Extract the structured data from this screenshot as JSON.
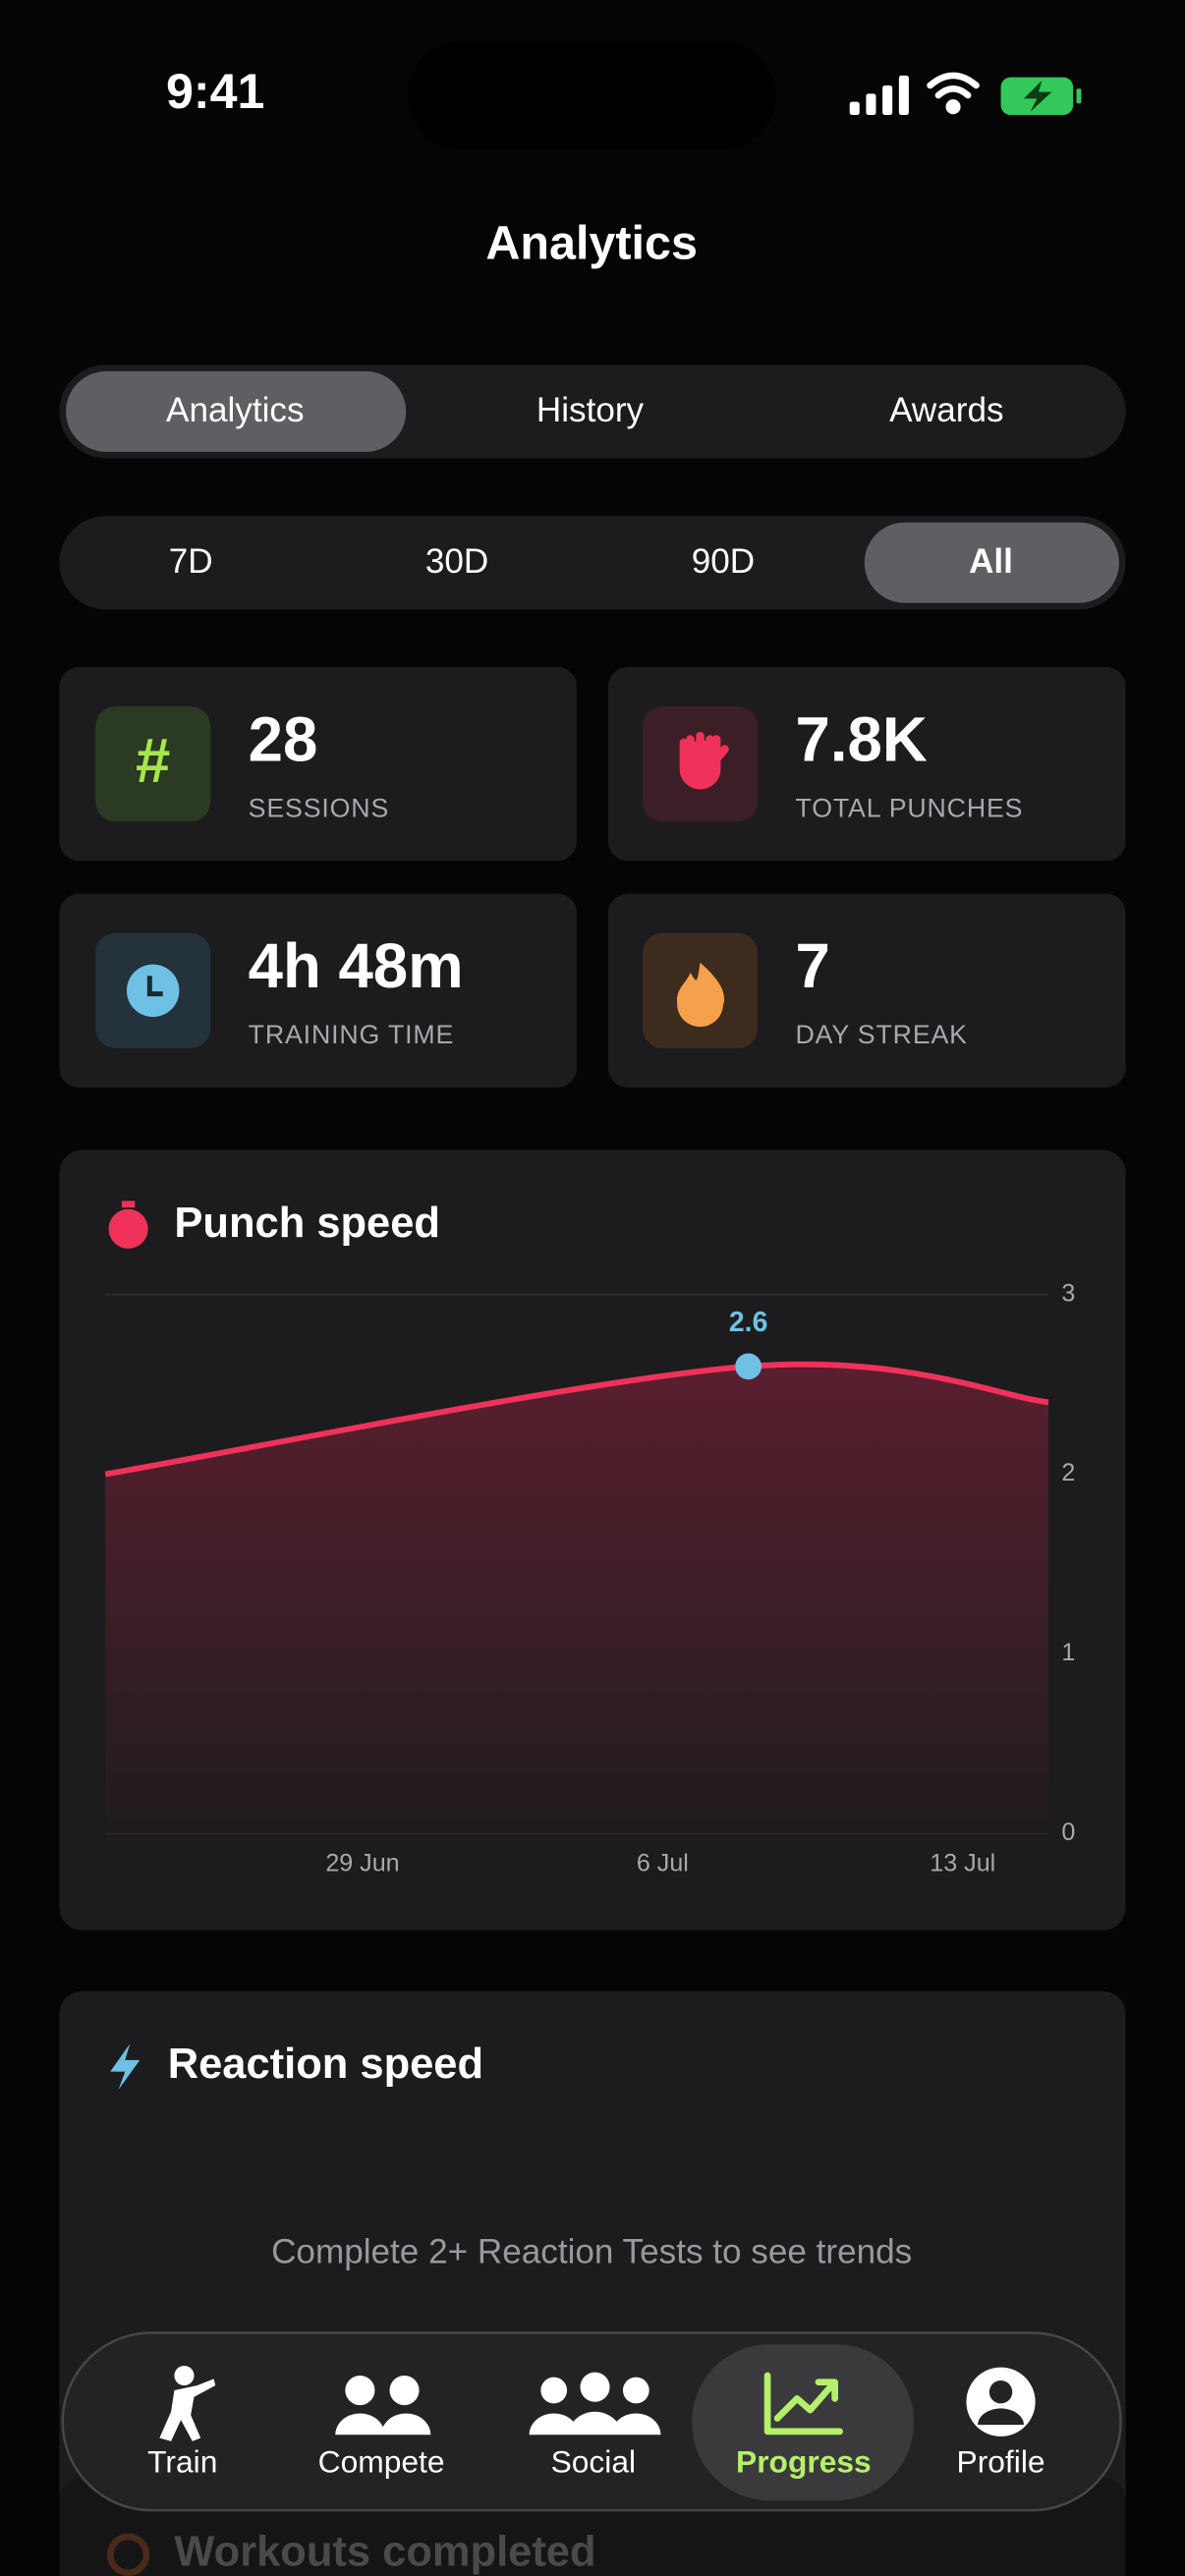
{
  "status": {
    "time": "9:41"
  },
  "header": {
    "title": "Analytics"
  },
  "tabs": [
    "Analytics",
    "History",
    "Awards"
  ],
  "ranges": [
    "7D",
    "30D",
    "90D",
    "All"
  ],
  "stats": [
    {
      "value": "28",
      "label": "SESSIONS"
    },
    {
      "value": "7.8K",
      "label": "TOTAL PUNCHES"
    },
    {
      "value": "4h 48m",
      "label": "TRAINING TIME"
    },
    {
      "value": "7",
      "label": "DAY STREAK"
    }
  ],
  "chart_data": {
    "type": "line",
    "title": "Punch speed",
    "x": [
      "23 Jun",
      "8 Jul",
      "15 Jul"
    ],
    "values": [
      2.0,
      2.6,
      2.4
    ],
    "color": "#f0325a",
    "highlight_index": 1,
    "xlim": [
      "23 Jun",
      "15 Jul"
    ],
    "xticks": [
      "29 Jun",
      "6 Jul",
      "13 Jul"
    ],
    "ylim": [
      0,
      3
    ],
    "yticks": [
      0,
      1,
      2,
      3
    ],
    "grid": true
  },
  "reaction": {
    "title": "Reaction speed",
    "message": "Complete 2+ Reaction Tests to see trends"
  },
  "workouts": {
    "title": "Workouts completed"
  },
  "nav": [
    "Train",
    "Compete",
    "Social",
    "Progress",
    "Profile"
  ]
}
